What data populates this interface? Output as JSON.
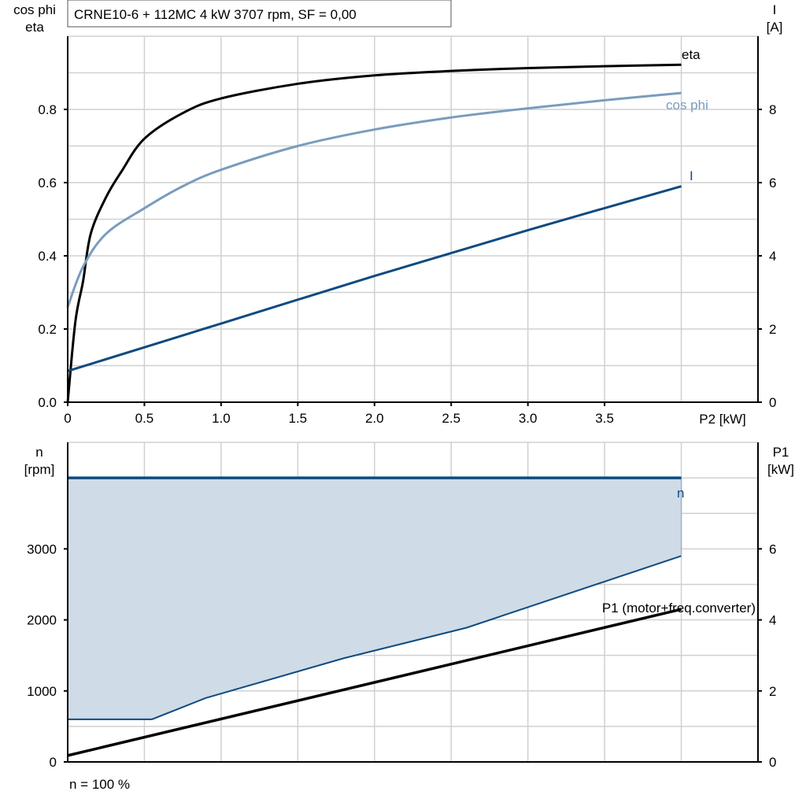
{
  "chart_data": [
    {
      "type": "line",
      "title": "CRNE10-6 + 112MC   4 kW   3707 rpm, SF = 0,00",
      "xlabel": "P2 [kW]",
      "ylabel_left": [
        "cos phi",
        "eta"
      ],
      "ylabel_right": [
        "I",
        "[A]"
      ],
      "xlim": [
        0,
        4.5
      ],
      "ylim_left": [
        0,
        1.0
      ],
      "ylim_right": [
        0,
        10
      ],
      "grid": true,
      "x_ticks": [
        "0",
        "0.5",
        "1.0",
        "1.5",
        "2.0",
        "2.5",
        "3.0",
        "3.5"
      ],
      "y_ticks_left": [
        "0.0",
        "0.2",
        "0.4",
        "0.6",
        "0.8"
      ],
      "y_ticks_right": [
        "0",
        "2",
        "4",
        "6",
        "8"
      ],
      "series": [
        {
          "name": "eta",
          "axis": "left",
          "color": "#000000",
          "x": [
            0,
            0.05,
            0.1,
            0.15,
            0.25,
            0.35,
            0.5,
            0.75,
            1.0,
            1.5,
            2.0,
            2.5,
            3.0,
            3.5,
            4.0
          ],
          "y": [
            0,
            0.22,
            0.33,
            0.46,
            0.56,
            0.63,
            0.72,
            0.79,
            0.83,
            0.87,
            0.893,
            0.905,
            0.913,
            0.918,
            0.922
          ]
        },
        {
          "name": "cos phi",
          "axis": "left",
          "color": "#7a9cbd",
          "x": [
            0,
            0.1,
            0.25,
            0.5,
            0.75,
            1.0,
            1.5,
            2.0,
            2.5,
            3.0,
            3.5,
            4.0
          ],
          "y": [
            0.26,
            0.37,
            0.46,
            0.53,
            0.59,
            0.635,
            0.7,
            0.745,
            0.778,
            0.803,
            0.825,
            0.845
          ]
        },
        {
          "name": "I",
          "axis": "right",
          "color": "#0f4a80",
          "x": [
            0,
            1.0,
            2.0,
            3.0,
            4.0
          ],
          "y": [
            0.85,
            2.15,
            3.45,
            4.7,
            5.9
          ]
        }
      ]
    },
    {
      "type": "area",
      "xlabel": "n = 100 %",
      "ylabel_left": [
        "n",
        "[rpm]"
      ],
      "ylabel_right": [
        "P1",
        "[kW]"
      ],
      "xlim": [
        0,
        4.5
      ],
      "ylim_left": [
        0,
        4500
      ],
      "ylim_right": [
        0,
        9
      ],
      "grid": true,
      "y_ticks_left": [
        "0",
        "1000",
        "2000",
        "3000"
      ],
      "y_ticks_right": [
        "0",
        "2",
        "4",
        "6"
      ],
      "series": [
        {
          "name": "n",
          "axis": "left",
          "color": "#0f4a80",
          "x": [
            0,
            4.0
          ],
          "y": [
            4000,
            4000
          ]
        },
        {
          "axis": "left",
          "color": "#0f4a80",
          "fill": "#cfdbe6",
          "x": [
            0,
            0.55,
            0.9,
            1.8,
            2.6,
            4.0
          ],
          "y": [
            600,
            600,
            900,
            1460,
            1890,
            2900
          ]
        },
        {
          "name": "P1 (motor+freq.converter)",
          "axis": "right",
          "color": "#000000",
          "x": [
            0,
            4.0
          ],
          "y": [
            0.18,
            4.3
          ]
        }
      ]
    }
  ]
}
